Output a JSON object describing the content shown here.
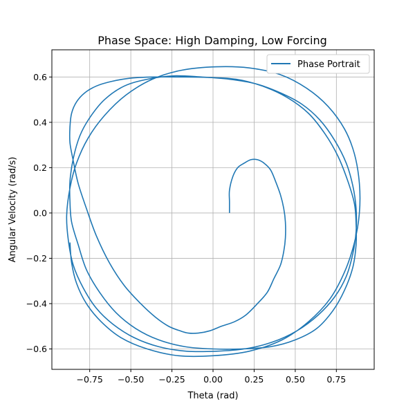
{
  "chart_data": {
    "type": "line",
    "title": "Phase Space: High Damping, Low Forcing",
    "xlabel": "Theta (rad)",
    "ylabel": "Angular Velocity (rad/s)",
    "xlim": [
      -0.98,
      0.98
    ],
    "ylim": [
      -0.69,
      0.72
    ],
    "xticks": [
      -0.75,
      -0.5,
      -0.25,
      0.0,
      0.25,
      0.5,
      0.75
    ],
    "xtick_labels": [
      "−0.75",
      "−0.50",
      "−0.25",
      "0.00",
      "0.25",
      "0.50",
      "0.75"
    ],
    "yticks": [
      -0.6,
      -0.4,
      -0.2,
      0.0,
      0.2,
      0.4,
      0.6
    ],
    "ytick_labels": [
      "−0.6",
      "−0.4",
      "−0.2",
      "0.0",
      "0.2",
      "0.4",
      "0.6"
    ],
    "grid": true,
    "legend_position": "top-right",
    "colors": {
      "series": "#1f77b4",
      "grid": "#b0b0b0",
      "axes": "#000000"
    },
    "series": [
      {
        "name": "Phase Portrait",
        "x": [
          0.1,
          0.1,
          0.1,
          0.12,
          0.15,
          0.19,
          0.23,
          0.27,
          0.31,
          0.35,
          0.38,
          0.41,
          0.43,
          0.44,
          0.44,
          0.43,
          0.41,
          0.37,
          0.33,
          0.27,
          0.2,
          0.13,
          0.05,
          -0.02,
          -0.09,
          -0.15,
          -0.2,
          -0.27,
          -0.35,
          -0.44,
          -0.54,
          -0.63,
          -0.71,
          -0.77,
          -0.82,
          -0.85,
          -0.87,
          -0.87,
          -0.86,
          -0.83,
          -0.78,
          -0.71,
          -0.62,
          -0.5,
          -0.36,
          -0.2,
          -0.03,
          0.14,
          0.3,
          0.45,
          0.58,
          0.68,
          0.76,
          0.82,
          0.86,
          0.87,
          0.87,
          0.85,
          0.8,
          0.73,
          0.63,
          0.5,
          0.35,
          0.17,
          0.0,
          -0.17,
          -0.33,
          -0.47,
          -0.59,
          -0.69,
          -0.77,
          -0.82,
          -0.86,
          -0.87,
          -0.87,
          -0.85,
          -0.81,
          -0.75,
          -0.66,
          -0.54,
          -0.4,
          -0.24,
          -0.07,
          0.1,
          0.26,
          0.41,
          0.54,
          0.65,
          0.74,
          0.81,
          0.85,
          0.87,
          0.87,
          0.85,
          0.81,
          0.74,
          0.64,
          0.51,
          0.36,
          0.19,
          0.02,
          -0.16,
          -0.33,
          -0.48,
          -0.61,
          -0.71,
          -0.79,
          -0.85,
          -0.88,
          -0.89,
          -0.87,
          -0.83,
          -0.76,
          -0.66,
          -0.53,
          -0.37,
          -0.19,
          0.02,
          0.22,
          0.41,
          0.57,
          0.7,
          0.8,
          0.86,
          0.89,
          0.89,
          0.86,
          0.8,
          0.71,
          0.58,
          0.42,
          0.22,
          0.0,
          -0.21,
          -0.4,
          -0.56,
          -0.68,
          -0.77,
          -0.83,
          -0.86,
          -0.87
        ],
        "y": [
          0.0,
          0.05,
          0.1,
          0.16,
          0.2,
          0.22,
          0.235,
          0.235,
          0.22,
          0.19,
          0.14,
          0.08,
          0.02,
          -0.04,
          -0.11,
          -0.17,
          -0.23,
          -0.29,
          -0.35,
          -0.4,
          -0.45,
          -0.48,
          -0.5,
          -0.52,
          -0.53,
          -0.53,
          -0.52,
          -0.5,
          -0.46,
          -0.4,
          -0.32,
          -0.22,
          -0.1,
          0.02,
          0.13,
          0.23,
          0.31,
          0.38,
          0.44,
          0.49,
          0.53,
          0.56,
          0.58,
          0.595,
          0.6,
          0.6,
          0.598,
          0.59,
          0.56,
          0.51,
          0.44,
          0.35,
          0.25,
          0.14,
          0.04,
          -0.05,
          -0.14,
          -0.24,
          -0.34,
          -0.43,
          -0.51,
          -0.56,
          -0.59,
          -0.6,
          -0.6,
          -0.59,
          -0.56,
          -0.51,
          -0.44,
          -0.35,
          -0.25,
          -0.14,
          -0.04,
          0.05,
          0.14,
          0.24,
          0.34,
          0.42,
          0.5,
          0.56,
          0.59,
          0.605,
          0.6,
          0.59,
          0.57,
          0.53,
          0.48,
          0.41,
          0.32,
          0.22,
          0.12,
          0.02,
          -0.08,
          -0.18,
          -0.28,
          -0.37,
          -0.45,
          -0.52,
          -0.57,
          -0.6,
          -0.61,
          -0.61,
          -0.59,
          -0.55,
          -0.49,
          -0.42,
          -0.33,
          -0.23,
          -0.12,
          -0.01,
          0.11,
          0.22,
          0.33,
          0.43,
          0.52,
          0.59,
          0.63,
          0.645,
          0.64,
          0.61,
          0.55,
          0.47,
          0.37,
          0.26,
          0.13,
          0.0,
          -0.13,
          -0.26,
          -0.38,
          -0.48,
          -0.56,
          -0.61,
          -0.63,
          -0.63,
          -0.6,
          -0.55,
          -0.48,
          -0.4,
          -0.31,
          -0.22,
          -0.13
        ]
      }
    ]
  }
}
